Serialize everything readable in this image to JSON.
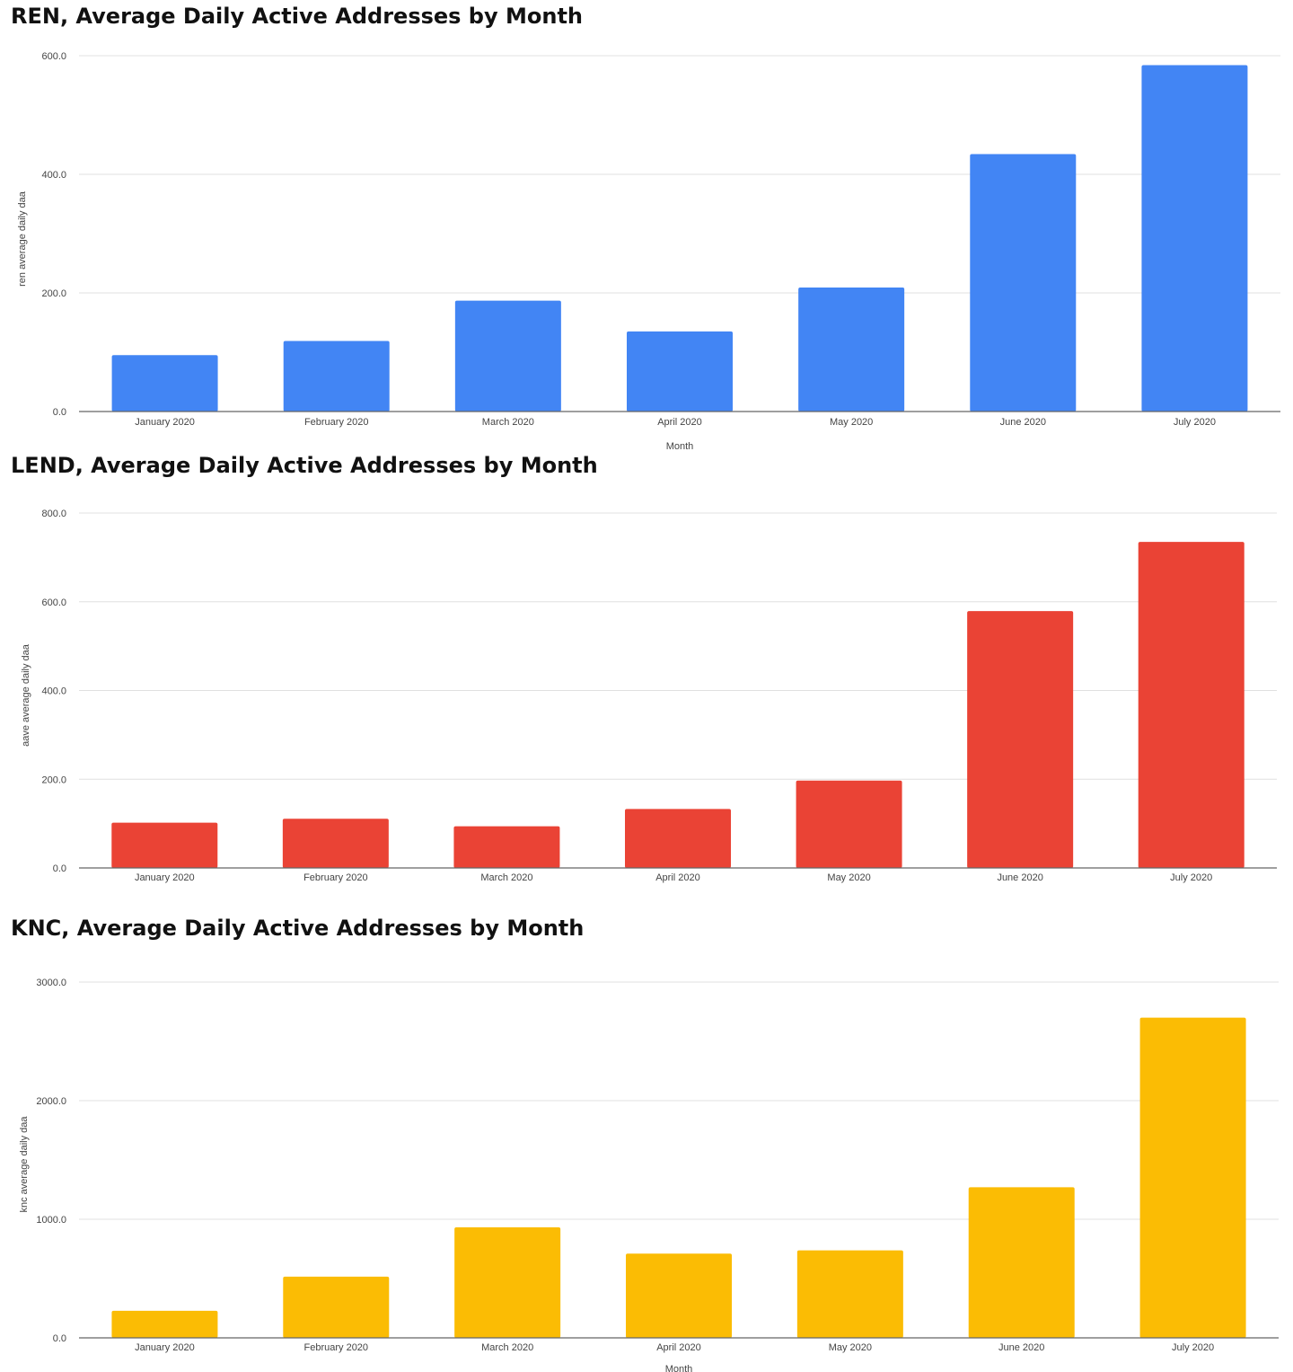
{
  "chart_data": [
    {
      "type": "bar",
      "title": "REN, Average Daily Active Addresses by Month",
      "categories": [
        "January 2020",
        "February 2020",
        "March 2020",
        "April 2020",
        "May 2020",
        "June 2020",
        "July 2020"
      ],
      "values": [
        95,
        119,
        187,
        135,
        209,
        434,
        584
      ],
      "ylim": [
        0,
        600
      ],
      "yticks": [
        "0.0",
        "200.0",
        "400.0",
        "600.0"
      ],
      "xlabel": "Month",
      "ylabel": "ren average daily daa",
      "color": "#4285f4"
    },
    {
      "type": "bar",
      "title": "LEND, Average Daily Active Addresses by Month",
      "categories": [
        "January 2020",
        "February 2020",
        "March 2020",
        "April 2020",
        "May 2020",
        "June 2020",
        "July 2020"
      ],
      "values": [
        102,
        111,
        94,
        133,
        197,
        579,
        735
      ],
      "ylim": [
        0,
        800
      ],
      "yticks": [
        "0.0",
        "200.0",
        "400.0",
        "600.0",
        "800.0"
      ],
      "xlabel": "",
      "ylabel": "aave average daily daa",
      "color": "#ea4335"
    },
    {
      "type": "bar",
      "title": "KNC, Average Daily Active Addresses by Month",
      "categories": [
        "January 2020",
        "February 2020",
        "March 2020",
        "April 2020",
        "May 2020",
        "June 2020",
        "July 2020"
      ],
      "values": [
        228,
        516,
        932,
        710,
        738,
        1270,
        2700
      ],
      "ylim": [
        0,
        3000
      ],
      "yticks": [
        "0.0",
        "1000.0",
        "2000.0",
        "3000.0"
      ],
      "xlabel": "Month",
      "ylabel": "knc average daily daa",
      "color": "#fbbc04"
    }
  ]
}
